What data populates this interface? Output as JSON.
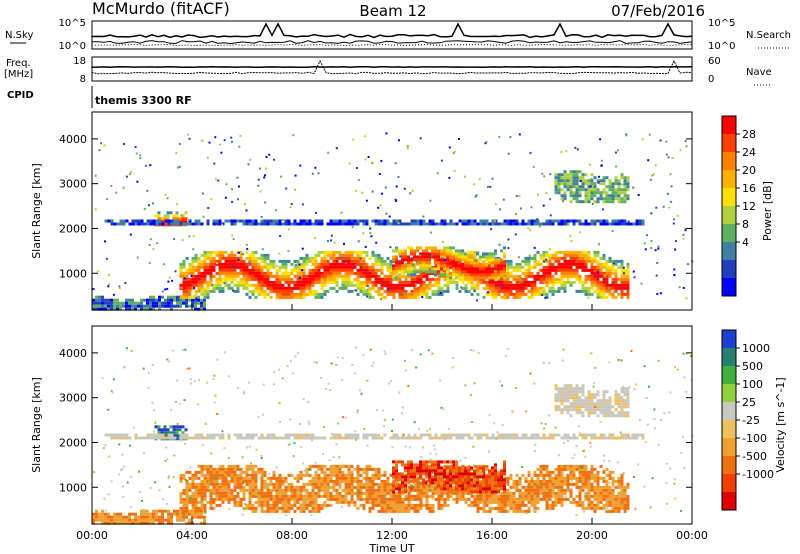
{
  "header": {
    "site": "McMurdo (fitACF)",
    "beam": "Beam 12",
    "date": "07/Feb/2016"
  },
  "summary": {
    "nsky_label": "N.Sky",
    "nsky_ticks": [
      "10^5",
      "10^0"
    ],
    "nsearch_label": "N.Search",
    "nsearch_ticks": [
      "10^5",
      "10^0"
    ],
    "freq_label_1": "Freq.",
    "freq_label_2": "[MHz]",
    "freq_ticks": [
      "18",
      "8"
    ],
    "nave_label": "Nave",
    "nave_ticks": [
      "60",
      "0"
    ],
    "cpid_label": "CPID",
    "cpid_value": "themis 3300 RF"
  },
  "chart_data": [
    {
      "type": "heatmap",
      "panel": "power",
      "ylabel": "Slant Range [km]",
      "ylim": [
        180,
        4600
      ],
      "yticks": [
        "1000",
        "2000",
        "3000",
        "4000"
      ],
      "colorbar_label": "Power [dB]",
      "colorbar_ticks": [
        "28",
        "24",
        "20",
        "16",
        "12",
        "8",
        "4"
      ],
      "colorbar_colors": [
        "#ff0000",
        "#ff4000",
        "#ff8000",
        "#ffb000",
        "#ffe000",
        "#b0d040",
        "#60b060",
        "#4080a0",
        "#2040c0",
        "#0000ff"
      ],
      "echo_bands": [
        {
          "x_start": 0.0,
          "x_end": 4.5,
          "range_lo": 200,
          "range_hi": 500,
          "dominant": "green-blue"
        },
        {
          "x_start": 2.5,
          "x_end": 3.8,
          "range_lo": 2050,
          "range_hi": 2450,
          "dominant": "red-orange"
        },
        {
          "x_start": 3.5,
          "x_end": 21.5,
          "range_lo": 450,
          "range_hi": 1500,
          "dominant": "red-orange"
        },
        {
          "x_start": 12.0,
          "x_end": 16.5,
          "range_lo": 900,
          "range_hi": 1600,
          "dominant": "red-orange"
        },
        {
          "x_start": 0.5,
          "x_end": 22.0,
          "range_lo": 2100,
          "range_hi": 2200,
          "dominant": "blue"
        },
        {
          "x_start": 18.5,
          "x_end": 21.5,
          "range_lo": 2600,
          "range_hi": 3300,
          "dominant": "green"
        }
      ]
    },
    {
      "type": "heatmap",
      "panel": "velocity",
      "xlabel": "Time UT",
      "xticks": [
        "00:00",
        "04:00",
        "08:00",
        "12:00",
        "16:00",
        "20:00",
        "00:00"
      ],
      "xlim": [
        0,
        24
      ],
      "ylabel": "Slant Range [km]",
      "ylim": [
        180,
        4600
      ],
      "yticks": [
        "1000",
        "2000",
        "3000",
        "4000"
      ],
      "colorbar_label": "Velocity [m s^-1]",
      "colorbar_ticks": [
        "1000",
        "500",
        "100",
        "25",
        "-25",
        "-100",
        "-500",
        "-1000"
      ],
      "colorbar_colors": [
        "#1f3fd0",
        "#2a8070",
        "#40b040",
        "#90d040",
        "#c8c8c0",
        "#f0c060",
        "#f0a030",
        "#f07010",
        "#f04000",
        "#e00000"
      ],
      "echo_bands": [
        {
          "x_start": 0.0,
          "x_end": 4.5,
          "range_lo": 200,
          "range_hi": 500,
          "dominant": "orange"
        },
        {
          "x_start": 2.5,
          "x_end": 3.8,
          "range_lo": 2050,
          "range_hi": 2450,
          "dominant": "blue-green"
        },
        {
          "x_start": 3.5,
          "x_end": 21.5,
          "range_lo": 450,
          "range_hi": 1500,
          "dominant": "orange"
        },
        {
          "x_start": 12.0,
          "x_end": 16.5,
          "range_lo": 900,
          "range_hi": 1600,
          "dominant": "orange-red"
        },
        {
          "x_start": 0.5,
          "x_end": 22.0,
          "range_lo": 2100,
          "range_hi": 2200,
          "dominant": "grey"
        },
        {
          "x_start": 18.5,
          "x_end": 21.5,
          "range_lo": 2600,
          "range_hi": 3300,
          "dominant": "grey"
        }
      ]
    }
  ]
}
